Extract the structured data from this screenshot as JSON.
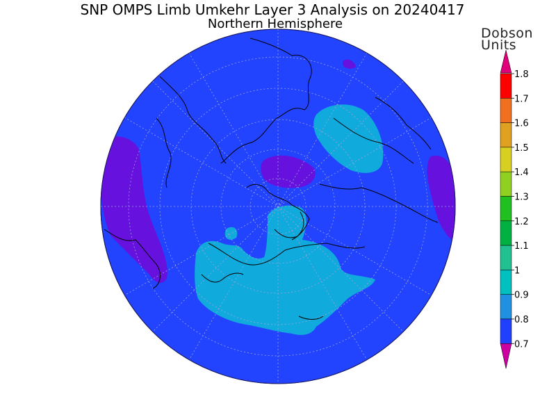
{
  "title": "SNP OMPS Limb Umkehr Layer 3 Analysis on 20240417",
  "subtitle": "Northern Hemisphere",
  "colorbar": {
    "units_line1": "Dobson",
    "units_line2": "Units",
    "ticks": [
      "1.8",
      "1.7",
      "1.6",
      "1.5",
      "1.4",
      "1.3",
      "1.2",
      "1.1",
      "1",
      "0.9",
      "0.8",
      "0.7"
    ],
    "colors": [
      "#e0007a",
      "#ff0000",
      "#f07020",
      "#e0a020",
      "#d8d020",
      "#90d020",
      "#20c020",
      "#00b040",
      "#20c090",
      "#00c0c0",
      "#2090e0",
      "#2040ff",
      "#6600cc",
      "#cc00a0"
    ]
  },
  "map": {
    "projection": "north-polar-stereographic",
    "background_color": "#2244ff",
    "region_colors": {
      "low": "#6611dd",
      "mid": "#2244ff",
      "high": "#11aadd"
    }
  }
}
